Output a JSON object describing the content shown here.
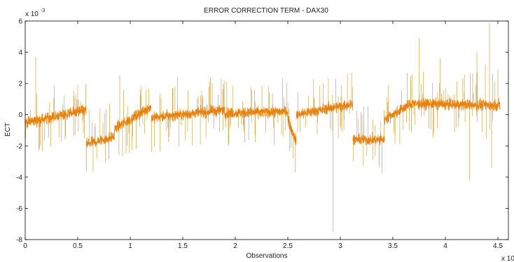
{
  "chart_data": {
    "type": "line",
    "title": "ERROR CORRECTION TERM - DAX30",
    "xlabel": "Observations",
    "ylabel": "ECT",
    "x_multiplier": "x 10",
    "y_multiplier": "x 10",
    "y_multiplier_exp": "-3",
    "xlim": [
      0,
      4.6
    ],
    "ylim": [
      -8,
      6
    ],
    "x_ticks": [
      "0",
      "0.5",
      "1",
      "1.5",
      "2",
      "2.5",
      "3",
      "3.5",
      "4",
      "4.5"
    ],
    "y_ticks": [
      "-8",
      "-6",
      "-4",
      "-2",
      "0",
      "2",
      "4",
      "6"
    ],
    "grid": false,
    "series": [
      {
        "color": "#E8820E",
        "spike_color": "#D4A84A",
        "segments": [
          {
            "x_start": 0.0,
            "x_end": 0.58,
            "level_start": -0.5,
            "level_end": 0.3
          },
          {
            "x_start": 0.58,
            "x_end": 0.85,
            "level_start": -1.9,
            "level_end": -1.4
          },
          {
            "x_start": 0.85,
            "x_end": 1.2,
            "level_start": -0.9,
            "level_end": 0.5
          },
          {
            "x_start": 1.2,
            "x_end": 1.9,
            "level_start": -0.2,
            "level_end": 0.3
          },
          {
            "x_start": 1.9,
            "x_end": 2.5,
            "level_start": 0.1,
            "level_end": 0.2
          },
          {
            "x_start": 2.5,
            "x_end": 2.58,
            "level_start": -0.3,
            "level_end": -1.7
          },
          {
            "x_start": 2.58,
            "x_end": 3.12,
            "level_start": 0.0,
            "level_end": 0.7
          },
          {
            "x_start": 3.12,
            "x_end": 3.42,
            "level_start": -1.6,
            "level_end": -1.6
          },
          {
            "x_start": 3.42,
            "x_end": 3.7,
            "level_start": -0.3,
            "level_end": 0.8
          },
          {
            "x_start": 3.7,
            "x_end": 4.52,
            "level_start": 0.7,
            "level_end": 0.6
          }
        ],
        "spikes": [
          {
            "x": 0.1,
            "y": 3.7
          },
          {
            "x": 0.9,
            "y": 2.5
          },
          {
            "x": 1.15,
            "y": 1.6
          },
          {
            "x": 1.45,
            "y": 2.4
          },
          {
            "x": 2.55,
            "y": -2.8
          },
          {
            "x": 2.93,
            "y": -7.5
          },
          {
            "x": 3.37,
            "y": -3.2
          },
          {
            "x": 3.75,
            "y": 4.9
          },
          {
            "x": 3.95,
            "y": 3.6
          },
          {
            "x": 4.23,
            "y": -4.2
          },
          {
            "x": 4.3,
            "y": 4.0
          },
          {
            "x": 4.38,
            "y": 3.2
          },
          {
            "x": 4.42,
            "y": 5.9
          },
          {
            "x": 4.44,
            "y": -3.4
          },
          {
            "x": 4.5,
            "y": 2.9
          }
        ]
      }
    ]
  }
}
